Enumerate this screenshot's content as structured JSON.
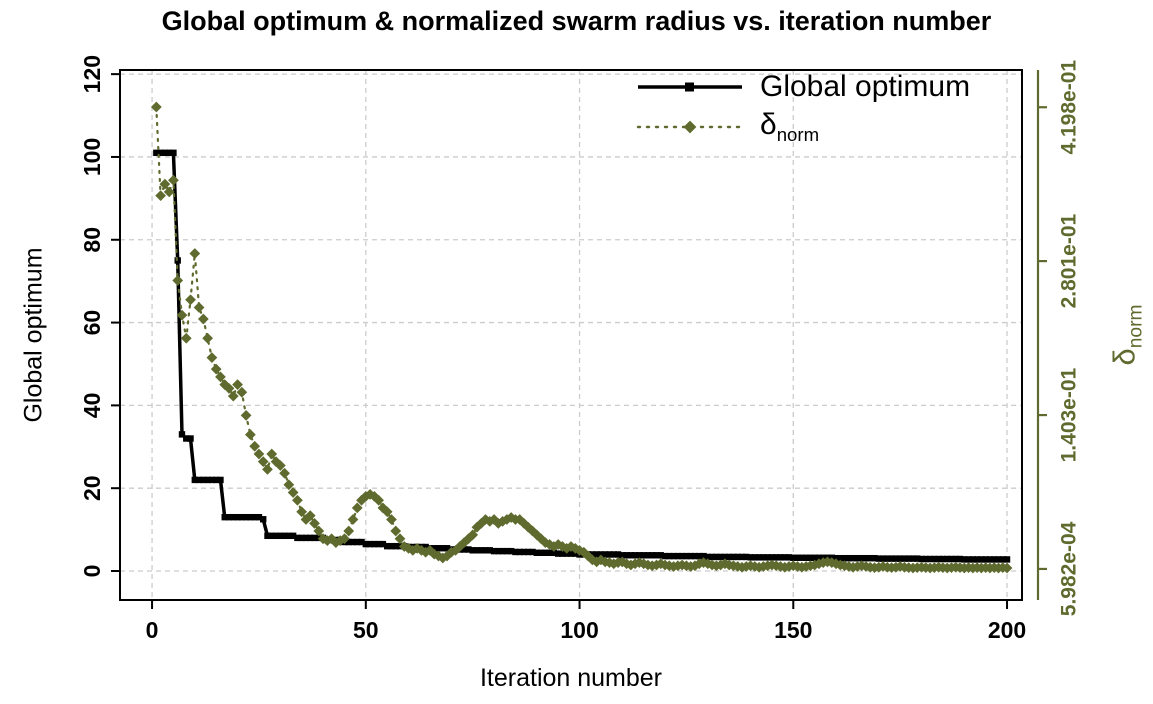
{
  "chart_data": {
    "type": "line",
    "title": "Global optimum & normalized swarm radius vs. iteration number",
    "xlabel": "Iteration number",
    "ylabel_left": "Global optimum",
    "ylabel_right": {
      "symbol": "δ",
      "subscript": "norm"
    },
    "legend_position": "top-right",
    "grid": true,
    "x_range": [
      -7.5,
      203.5
    ],
    "y_left_range": [
      -7,
      121
    ],
    "y_right_range": [
      -0.0276,
      0.4536
    ],
    "x_ticks": [
      0,
      50,
      100,
      150,
      200
    ],
    "y_left_ticks": [
      0,
      20,
      40,
      60,
      80,
      100,
      120
    ],
    "y_right_ticks": [
      {
        "value": 0.0005982,
        "label": "5.982e-04"
      },
      {
        "value": 0.1403,
        "label": "1.403e-01"
      },
      {
        "value": 0.2801,
        "label": "2.801e-01"
      },
      {
        "value": 0.4198,
        "label": "4.198e-01"
      }
    ],
    "colors": {
      "global_optimum": "#000000",
      "delta_norm": "#5f6b2e",
      "grid": "#cccccc",
      "right_axis": "#5f6b2e"
    },
    "series": [
      {
        "id": "global-optimum",
        "name": "Global optimum",
        "axis": "left",
        "color": "#000000",
        "marker": "square",
        "line": "solid",
        "x_start": 1,
        "x_step": 1,
        "y": [
          101,
          101,
          101,
          101,
          101,
          75,
          33,
          32,
          32,
          22,
          22,
          22,
          22,
          22,
          22,
          22,
          13,
          13,
          13,
          13,
          13,
          13,
          13,
          13,
          13,
          12.5,
          8.5,
          8.5,
          8.5,
          8.5,
          8.5,
          8.5,
          8.5,
          8,
          8,
          8,
          8,
          8,
          8,
          8,
          7.5,
          7.5,
          7.5,
          7.5,
          7,
          7,
          7,
          7,
          7,
          6.5,
          6.5,
          6.5,
          6.5,
          6.5,
          6,
          6,
          6,
          6,
          6,
          5.8,
          5.8,
          5.8,
          5.8,
          5.8,
          5.5,
          5.5,
          5.5,
          5.5,
          5.5,
          5.2,
          5.2,
          5.2,
          5.2,
          5.2,
          5,
          5,
          5,
          5,
          5,
          4.8,
          4.8,
          4.8,
          4.8,
          4.8,
          4.6,
          4.6,
          4.6,
          4.6,
          4.6,
          4.4,
          4.4,
          4.4,
          4.4,
          4.4,
          4.2,
          4.2,
          4.2,
          4.2,
          4.2,
          4,
          4,
          4,
          4,
          4,
          4,
          4,
          4,
          4,
          4,
          3.8,
          3.8,
          3.8,
          3.8,
          3.8,
          3.8,
          3.8,
          3.8,
          3.8,
          3.8,
          3.6,
          3.6,
          3.6,
          3.6,
          3.6,
          3.6,
          3.6,
          3.6,
          3.6,
          3.6,
          3.4,
          3.4,
          3.4,
          3.4,
          3.4,
          3.4,
          3.4,
          3.4,
          3.4,
          3.4,
          3.3,
          3.3,
          3.3,
          3.3,
          3.3,
          3.3,
          3.3,
          3.3,
          3.3,
          3.3,
          3.2,
          3.2,
          3.2,
          3.2,
          3.2,
          3.2,
          3.2,
          3.2,
          3.2,
          3.2,
          3.1,
          3.1,
          3.1,
          3.1,
          3.1,
          3.1,
          3.1,
          3.1,
          3.1,
          3.1,
          3,
          3,
          3,
          3,
          3,
          3,
          3,
          3,
          3,
          3,
          2.9,
          2.9,
          2.9,
          2.9,
          2.9,
          2.9,
          2.9,
          2.9,
          2.9,
          2.9,
          2.8,
          2.8,
          2.8,
          2.8,
          2.8,
          2.8,
          2.8,
          2.8,
          2.8,
          2.8,
          2.8
        ]
      },
      {
        "id": "delta-norm",
        "name": "delta_norm",
        "axis": "right",
        "color": "#5f6b2e",
        "marker": "diamond",
        "line": "dotted",
        "x_start": 1,
        "x_step": 1,
        "y": [
          0.42,
          0.3395,
          0.35,
          0.343,
          0.3535,
          0.2625,
          0.231,
          0.21,
          0.245,
          0.287,
          0.238,
          0.2275,
          0.21,
          0.1925,
          0.182,
          0.175,
          0.168,
          0.1645,
          0.1575,
          0.168,
          0.161,
          0.14,
          0.1225,
          0.112,
          0.105,
          0.098,
          0.091,
          0.105,
          0.098,
          0.0945,
          0.0875,
          0.077,
          0.07,
          0.063,
          0.0525,
          0.0455,
          0.049,
          0.042,
          0.035,
          0.028,
          0.0263,
          0.028,
          0.0245,
          0.0263,
          0.028,
          0.035,
          0.0455,
          0.056,
          0.063,
          0.0665,
          0.0683,
          0.0665,
          0.063,
          0.056,
          0.0525,
          0.0455,
          0.035,
          0.028,
          0.021,
          0.0193,
          0.0175,
          0.0193,
          0.0175,
          0.0158,
          0.0175,
          0.014,
          0.0123,
          0.0105,
          0.0123,
          0.0158,
          0.0175,
          0.021,
          0.0245,
          0.028,
          0.0315,
          0.0385,
          0.042,
          0.0455,
          0.0438,
          0.0455,
          0.042,
          0.0438,
          0.0455,
          0.0473,
          0.0455,
          0.0455,
          0.042,
          0.0385,
          0.035,
          0.0315,
          0.028,
          0.0245,
          0.0228,
          0.021,
          0.0228,
          0.021,
          0.0193,
          0.021,
          0.0193,
          0.0175,
          0.0158,
          0.0123,
          0.0088,
          0.007,
          0.0088,
          0.007,
          0.0063,
          0.0053,
          0.0063,
          0.007,
          0.0053,
          0.0042,
          0.0053,
          0.0063,
          0.0053,
          0.0042,
          0.0035,
          0.0042,
          0.0053,
          0.0042,
          0.0035,
          0.0028,
          0.0035,
          0.0042,
          0.0035,
          0.0028,
          0.0035,
          0.0053,
          0.0063,
          0.0053,
          0.0042,
          0.0035,
          0.0042,
          0.0053,
          0.0042,
          0.0035,
          0.0028,
          0.0021,
          0.0028,
          0.0035,
          0.0028,
          0.0021,
          0.0028,
          0.0035,
          0.0042,
          0.0035,
          0.0028,
          0.0021,
          0.0028,
          0.0035,
          0.0028,
          0.0021,
          0.0028,
          0.0035,
          0.0042,
          0.0053,
          0.0063,
          0.007,
          0.0063,
          0.0053,
          0.0042,
          0.0035,
          0.0028,
          0.0021,
          0.0028,
          0.0035,
          0.0028,
          0.0021,
          0.0018,
          0.0021,
          0.0028,
          0.0021,
          0.0018,
          0.0021,
          0.0028,
          0.0021,
          0.0018,
          0.0014,
          0.0018,
          0.0021,
          0.0018,
          0.0014,
          0.0018,
          0.0021,
          0.0018,
          0.0014,
          0.0018,
          0.0021,
          0.0018,
          0.0014,
          0.0018,
          0.0014,
          0.0018,
          0.0014,
          0.0018,
          0.0014,
          0.0018,
          0.0014,
          0.0018,
          0.0014
        ]
      }
    ]
  }
}
